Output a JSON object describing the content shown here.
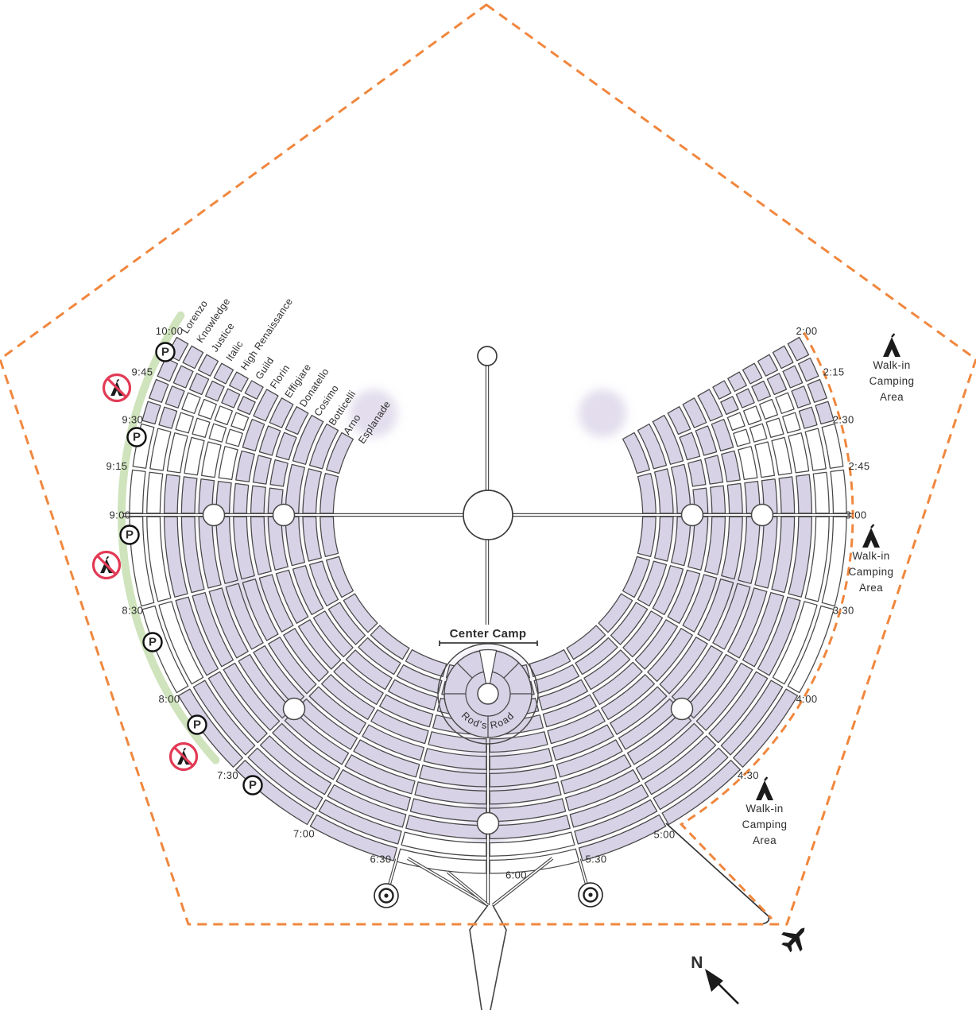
{
  "map": {
    "ring_streets": [
      "Esplanade",
      "Arno",
      "Botticelli",
      "Cosimo",
      "Donatello",
      "Effigiare",
      "Florin",
      "Guild",
      "High Renaissance",
      "Italic",
      "Justice",
      "Knowledge",
      "Lorenzo"
    ],
    "time_labels": [
      "2:00",
      "2:15",
      "2:30",
      "2:45",
      "3:00",
      "3:30",
      "4:00",
      "4:30",
      "5:00",
      "5:30",
      "6:00",
      "6:30",
      "7:00",
      "7:30",
      "8:00",
      "8:30",
      "9:00",
      "9:15",
      "9:30",
      "9:45",
      "10:00"
    ],
    "center_camp": {
      "label": "Center Camp",
      "ring_road": "Rod's Road"
    },
    "walk_in_camping": {
      "lines": [
        "Walk-in",
        "Camping",
        "Area"
      ],
      "count": 3
    },
    "north_label": "N",
    "parking_label": "P",
    "icons": {
      "parking": "p-in-circle-icon",
      "no_camping": "no-camping-tent-icon",
      "tent": "tent-icon",
      "airplane": "airplane-icon",
      "north_arrow": "north-arrow-icon",
      "man": "man-center-circle",
      "plaza": "plaza-circle",
      "roundabout": "roundabout-circle"
    },
    "colors": {
      "block_fill": "#d8d2e6",
      "block_outline": "#474747",
      "fence_orange": "#f0873e",
      "greenbelt": "#cfe3bd",
      "no_camping_red": "#e23a55",
      "icon_black": "#1b1b1b",
      "text": "#2e2e2e"
    }
  }
}
